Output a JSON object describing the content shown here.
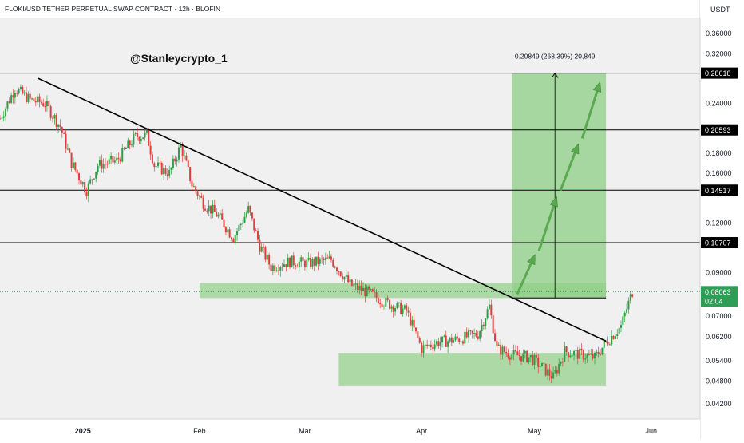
{
  "header": {
    "title": "FLOKI/USD TETHER PERPETUAL SWAP CONTRACT · 12h · BLOFIN",
    "currency": "USDT"
  },
  "watermark": "@Stanleycrypto_1",
  "colors": {
    "background": "#f0f0f0",
    "up_candle": "#2f9e44",
    "down_candle": "#e03e3e",
    "zone_fill": "#8fcf85",
    "trendline": "#000000",
    "price_tag": "#2e9d55"
  },
  "chart_data": {
    "type": "candlestick",
    "title": "FLOKI/USD TETHER PERPETUAL SWAP CONTRACT · 12h · BLOFIN",
    "y_scale": "log",
    "ylim": [
      0.0385,
      0.395
    ],
    "x_axis_labels": [
      "2025",
      "Feb",
      "Mar",
      "Apr",
      "May",
      "Jun"
    ],
    "y_tick_labels": [
      "0.36000",
      "0.32000",
      "0.24000",
      "0.18000",
      "0.16000",
      "0.12000",
      "0.09000",
      "0.07000",
      "0.06200",
      "0.05400",
      "0.04800",
      "0.04200"
    ],
    "levels": [
      {
        "label": "0.28618",
        "value": 0.28618
      },
      {
        "label": "0.20593",
        "value": 0.20593
      },
      {
        "label": "0.14517",
        "value": 0.14517
      },
      {
        "label": "0.10707",
        "value": 0.10707
      }
    ],
    "current_price": {
      "label": "0.08063",
      "value": 0.08063,
      "countdown": "02:04"
    },
    "measure": {
      "text": "0.20849 (268.39%) 20,849",
      "from": 0.0777,
      "to": 0.28618
    },
    "trendline": {
      "from_date": "2024-12-20",
      "from_value": 0.278,
      "to_date": "2025-05-20",
      "to_value": 0.0605
    },
    "support_zones": [
      {
        "from_date": "2025-02-01",
        "to_date": "2025-05-20",
        "low": 0.0777,
        "high": 0.0848
      },
      {
        "from_date": "2025-03-10",
        "to_date": "2025-05-20",
        "low": 0.0468,
        "high": 0.0565
      }
    ],
    "target_box": {
      "from_date": "2025-04-25",
      "to_date": "2025-05-20",
      "low": 0.0777,
      "high": 0.28618
    },
    "projection_arrows": [
      [
        0.0795,
        0.1
      ],
      [
        0.102,
        0.14
      ],
      [
        0.145,
        0.19
      ],
      [
        0.196,
        0.272
      ]
    ],
    "close_path": [
      [
        "2024-12-10",
        0.22
      ],
      [
        "2024-12-14",
        0.262
      ],
      [
        "2024-12-18",
        0.245
      ],
      [
        "2024-12-22",
        0.24
      ],
      [
        "2024-12-26",
        0.21
      ],
      [
        "2024-12-29",
        0.17
      ],
      [
        "2025-01-02",
        0.145
      ],
      [
        "2025-01-05",
        0.168
      ],
      [
        "2025-01-10",
        0.172
      ],
      [
        "2025-01-15",
        0.198
      ],
      [
        "2025-01-18",
        0.2
      ],
      [
        "2025-01-20",
        0.168
      ],
      [
        "2025-01-24",
        0.16
      ],
      [
        "2025-01-27",
        0.188
      ],
      [
        "2025-01-30",
        0.15
      ],
      [
        "2025-02-02",
        0.135
      ],
      [
        "2025-02-06",
        0.125
      ],
      [
        "2025-02-10",
        0.11
      ],
      [
        "2025-02-14",
        0.13
      ],
      [
        "2025-02-17",
        0.105
      ],
      [
        "2025-02-20",
        0.093
      ],
      [
        "2025-02-25",
        0.096
      ],
      [
        "2025-03-02",
        0.095
      ],
      [
        "2025-03-08",
        0.097
      ],
      [
        "2025-03-13",
        0.084
      ],
      [
        "2025-03-18",
        0.08
      ],
      [
        "2025-03-22",
        0.076
      ],
      [
        "2025-03-28",
        0.072
      ],
      [
        "2025-04-01",
        0.058
      ],
      [
        "2025-04-05",
        0.06
      ],
      [
        "2025-04-10",
        0.061
      ],
      [
        "2025-04-16",
        0.063
      ],
      [
        "2025-04-19",
        0.074
      ],
      [
        "2025-04-21",
        0.058
      ],
      [
        "2025-04-25",
        0.056
      ],
      [
        "2025-04-30",
        0.055
      ],
      [
        "2025-05-03",
        0.052
      ],
      [
        "2025-05-06",
        0.049
      ],
      [
        "2025-05-09",
        0.057
      ],
      [
        "2025-05-13",
        0.056
      ],
      [
        "2025-05-17",
        0.055
      ],
      [
        "2025-05-20",
        0.06
      ],
      [
        "2025-05-24",
        0.066
      ],
      [
        "2025-05-27",
        0.08063
      ]
    ]
  }
}
